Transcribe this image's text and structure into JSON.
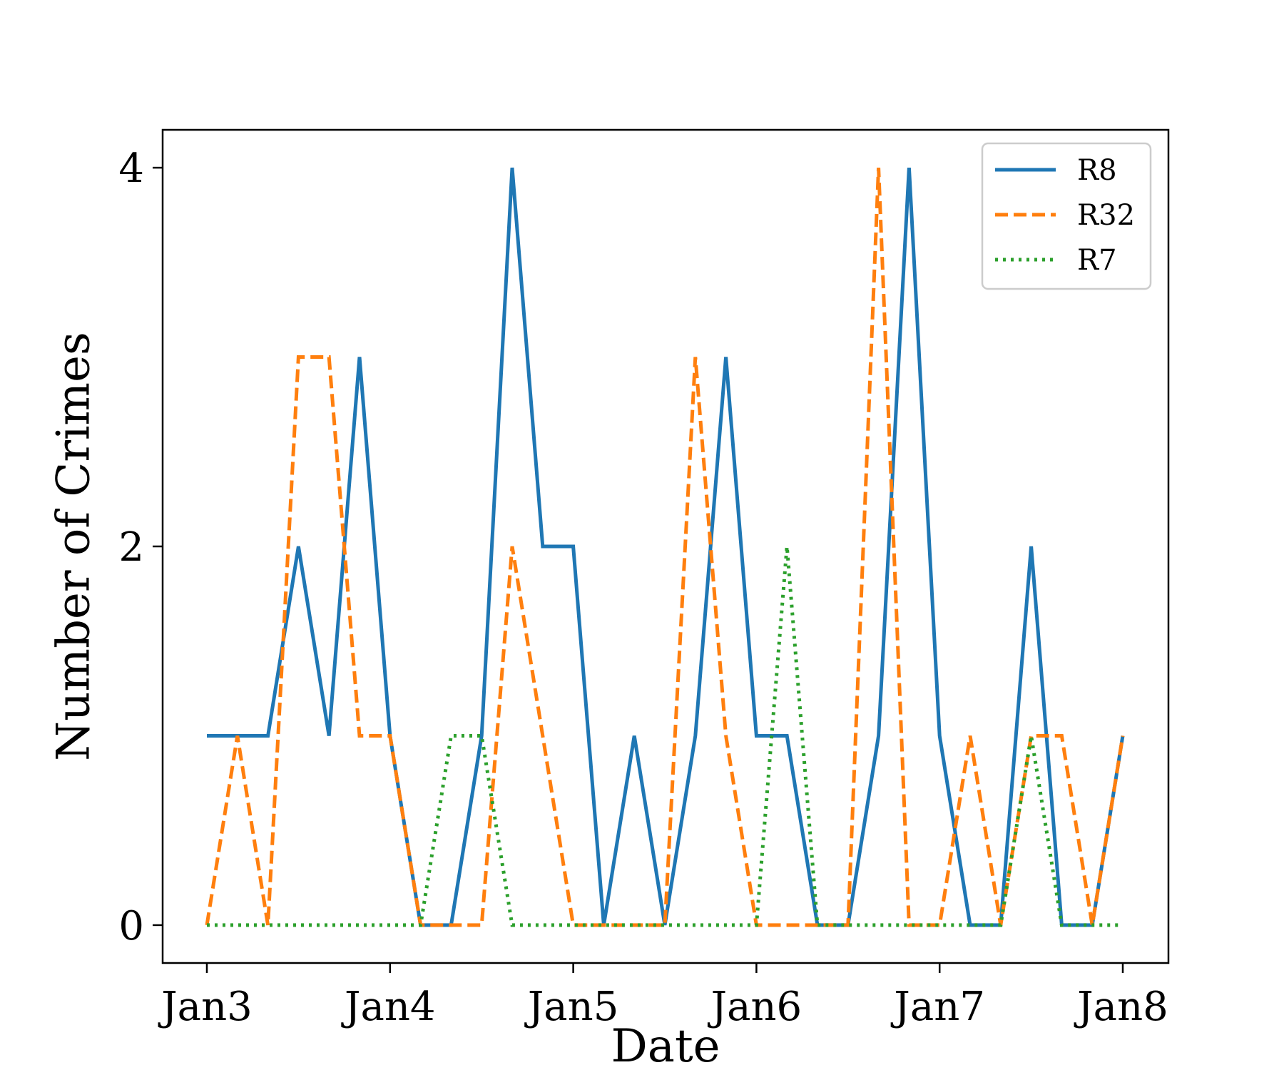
{
  "chart_data": {
    "type": "line",
    "title": "",
    "xlabel": "Date",
    "ylabel": "Number of Crimes",
    "x": [
      "Jan3 00:00",
      "Jan3 04:00",
      "Jan3 08:00",
      "Jan3 12:00",
      "Jan3 16:00",
      "Jan3 20:00",
      "Jan4 00:00",
      "Jan4 04:00",
      "Jan4 08:00",
      "Jan4 12:00",
      "Jan4 16:00",
      "Jan4 20:00",
      "Jan5 00:00",
      "Jan5 04:00",
      "Jan5 08:00",
      "Jan5 12:00",
      "Jan5 16:00",
      "Jan5 20:00",
      "Jan6 00:00",
      "Jan6 04:00",
      "Jan6 08:00",
      "Jan6 12:00",
      "Jan6 16:00",
      "Jan6 20:00",
      "Jan7 00:00",
      "Jan7 04:00",
      "Jan7 08:00",
      "Jan7 12:00",
      "Jan7 16:00",
      "Jan7 20:00",
      "Jan8 00:00"
    ],
    "x_ticks": [
      "Jan3",
      "Jan4",
      "Jan5",
      "Jan6",
      "Jan7",
      "Jan8"
    ],
    "y_ticks": [
      0,
      2,
      4
    ],
    "ylim": [
      -0.2,
      4.2
    ],
    "series": [
      {
        "name": "R8",
        "color": "#1f77b4",
        "style": "solid",
        "values": [
          1,
          1,
          1,
          2,
          1,
          3,
          1,
          0,
          0,
          1,
          4,
          2,
          2,
          0,
          1,
          0,
          1,
          3,
          1,
          1,
          0,
          0,
          1,
          4,
          1,
          0,
          0,
          2,
          0,
          0,
          1
        ]
      },
      {
        "name": "R32",
        "color": "#ff7f0e",
        "style": "dashed",
        "values": [
          0,
          1,
          0,
          3,
          3,
          1,
          1,
          0,
          0,
          0,
          2,
          1,
          0,
          0,
          0,
          0,
          3,
          1,
          0,
          0,
          0,
          0,
          4,
          0,
          0,
          1,
          0,
          1,
          1,
          0,
          1
        ]
      },
      {
        "name": "R7",
        "color": "#2ca02c",
        "style": "dotted",
        "values": [
          0,
          0,
          0,
          0,
          0,
          0,
          0,
          0,
          1,
          1,
          0,
          0,
          0,
          0,
          0,
          0,
          0,
          0,
          0,
          2,
          0,
          0,
          0,
          0,
          0,
          0,
          0,
          1,
          0,
          0,
          0
        ]
      }
    ],
    "legend": {
      "position": "top-right"
    },
    "grid": false
  }
}
